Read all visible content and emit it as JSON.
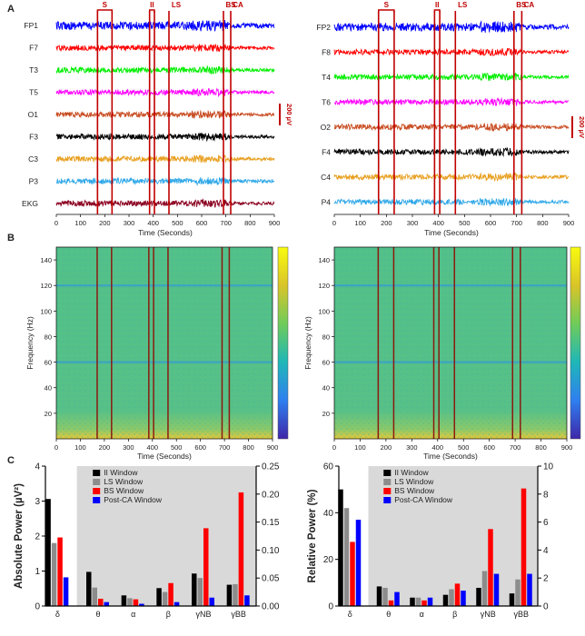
{
  "figure": {
    "panel_letters": [
      "A",
      "B",
      "C"
    ],
    "events": [
      {
        "label": "S",
        "lines": [
          170,
          230
        ]
      },
      {
        "label": "II",
        "lines": [
          385,
          405
        ]
      },
      {
        "label": "LS",
        "lines": [
          465
        ]
      },
      {
        "label": "BS",
        "lines": [
          690
        ]
      },
      {
        "label": "CA",
        "lines": [
          720
        ]
      }
    ],
    "event_color": "#c00000",
    "scale_bar_label": "200 µV",
    "x_axis_label": "Time (Seconds)",
    "x_ticks": [
      0,
      100,
      200,
      300,
      400,
      500,
      600,
      700,
      800,
      900
    ]
  },
  "chart_data": [
    {
      "type": "line",
      "panel": "A-left",
      "xlabel": "Time (Seconds)",
      "xlim": [
        0,
        900
      ],
      "channels": [
        {
          "name": "FP1",
          "color": "#0000ff"
        },
        {
          "name": "F7",
          "color": "#ff0000"
        },
        {
          "name": "T3",
          "color": "#00ee00"
        },
        {
          "name": "T5",
          "color": "#ff00ff"
        },
        {
          "name": "O1",
          "color": "#c84b20"
        },
        {
          "name": "F3",
          "color": "#000000"
        },
        {
          "name": "C3",
          "color": "#e8a020"
        },
        {
          "name": "P3",
          "color": "#30a8e8"
        },
        {
          "name": "EKG",
          "color": "#8b0020"
        }
      ]
    },
    {
      "type": "line",
      "panel": "A-right",
      "xlabel": "Time (Seconds)",
      "xlim": [
        0,
        900
      ],
      "channels": [
        {
          "name": "FP2",
          "color": "#0000ff"
        },
        {
          "name": "F8",
          "color": "#ff0000"
        },
        {
          "name": "T4",
          "color": "#00ee00"
        },
        {
          "name": "T6",
          "color": "#ff00ff"
        },
        {
          "name": "O2",
          "color": "#c84b20"
        },
        {
          "name": "F4",
          "color": "#000000"
        },
        {
          "name": "C4",
          "color": "#e8a020"
        },
        {
          "name": "P4",
          "color": "#30a8e8"
        }
      ]
    },
    {
      "type": "heatmap",
      "panel": "B-left",
      "xlabel": "Time (Seconds)",
      "ylabel": "Frequency (Hz)",
      "xlim": [
        0,
        900
      ],
      "ylim": [
        0,
        150
      ],
      "y_ticks": [
        20,
        40,
        60,
        80,
        100,
        120,
        140
      ],
      "colormap": [
        "#3e26a8",
        "#2f7ff0",
        "#1fb7b8",
        "#6fcc5a",
        "#d9c429",
        "#f9fb0e"
      ],
      "background": "#52c08a",
      "notch_bands_hz": [
        60,
        120
      ]
    },
    {
      "type": "heatmap",
      "panel": "B-right",
      "xlabel": "Time (Seconds)",
      "ylabel": "Frequency (Hz)",
      "xlim": [
        0,
        900
      ],
      "ylim": [
        0,
        150
      ],
      "y_ticks": [
        20,
        40,
        60,
        80,
        100,
        120,
        140
      ],
      "colormap": [
        "#3e26a8",
        "#2f7ff0",
        "#1fb7b8",
        "#6fcc5a",
        "#d9c429",
        "#f9fb0e"
      ],
      "background": "#52c08a",
      "notch_bands_hz": [
        60,
        120
      ]
    },
    {
      "type": "bar",
      "panel": "C-left",
      "ylabel": "Absolute Power (µV²)",
      "ylim_left": [
        0,
        4
      ],
      "yticks_left": [
        0,
        1,
        2,
        3,
        4
      ],
      "ylim_right": [
        0,
        0.25
      ],
      "yticks_right": [
        "0.00",
        "0.05",
        "0.10",
        "0.15",
        "0.20",
        "0.25"
      ],
      "categories": [
        "δ",
        "θ",
        "α",
        "β",
        "γNB",
        "γBB"
      ],
      "left_axis_categories": 1,
      "series": [
        {
          "name": "II Window",
          "color": "#000000",
          "values": [
            3.06,
            0.061,
            0.019,
            0.032,
            0.058,
            0.038
          ]
        },
        {
          "name": "LS Window",
          "color": "#8c8c8c",
          "values": [
            1.8,
            0.033,
            0.014,
            0.025,
            0.05,
            0.039
          ]
        },
        {
          "name": "BS Window",
          "color": "#ff0000",
          "values": [
            1.96,
            0.013,
            0.012,
            0.041,
            0.139,
            0.203
          ]
        },
        {
          "name": "Post-CA Window",
          "color": "#0000ff",
          "values": [
            0.82,
            0.007,
            0.004,
            0.007,
            0.015,
            0.019
          ]
        }
      ]
    },
    {
      "type": "bar",
      "panel": "C-right",
      "ylabel": "Relative Power (%)",
      "ylim_left": [
        0,
        60
      ],
      "yticks_left": [
        0,
        20,
        40,
        60
      ],
      "ylim_right": [
        0,
        10
      ],
      "yticks_right": [
        0,
        2,
        4,
        6,
        8,
        10
      ],
      "categories": [
        "δ",
        "θ",
        "α",
        "β",
        "γNB",
        "γBB"
      ],
      "left_axis_categories": 1,
      "series": [
        {
          "name": "II Window",
          "color": "#000000",
          "values": [
            50,
            1.4,
            0.6,
            0.8,
            1.3,
            0.9
          ]
        },
        {
          "name": "LS Window",
          "color": "#8c8c8c",
          "values": [
            42,
            1.3,
            0.6,
            1.2,
            2.5,
            1.9
          ]
        },
        {
          "name": "BS Window",
          "color": "#ff0000",
          "values": [
            27.5,
            0.4,
            0.4,
            1.6,
            5.5,
            8.4
          ]
        },
        {
          "name": "Post-CA Window",
          "color": "#0000ff",
          "values": [
            37,
            1.0,
            0.6,
            1.1,
            2.3,
            2.3
          ]
        }
      ]
    }
  ]
}
